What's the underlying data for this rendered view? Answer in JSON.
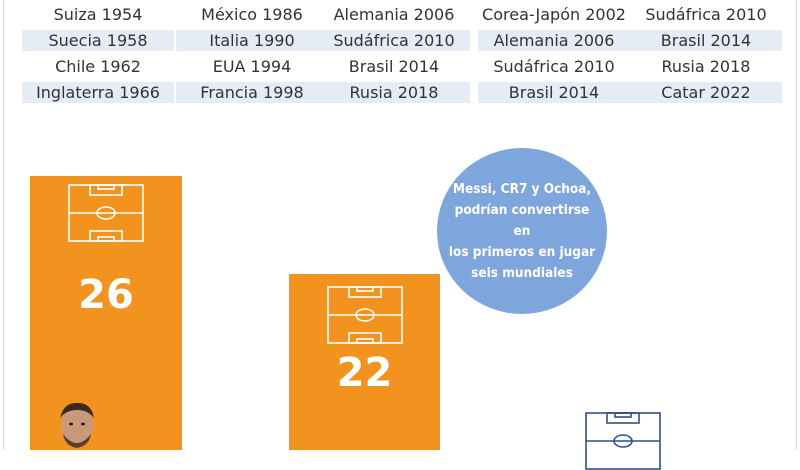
{
  "columns": [
    [
      "Suiza 1954",
      "Suecia 1958",
      "Chile 1962",
      "Inglaterra 1966"
    ],
    [
      "México 1986",
      "Italia 1990",
      "EUA 1994",
      "Francia 1998"
    ],
    [
      "Alemania 2006",
      "Sudáfrica 2010",
      "Brasil 2014",
      "Rusia 2018"
    ],
    [
      "Corea-Japón 2002",
      "Alemania 2006",
      "Sudáfrica 2010",
      "Brasil 2014"
    ],
    [
      "Sudáfrica 2010",
      "Brasil 2014",
      "Rusia 2018",
      "Catar 2022"
    ]
  ],
  "bars": [
    {
      "value": "26"
    },
    {
      "value": "22"
    }
  ],
  "callout": {
    "text_lines": [
      "Messi, CR7 y Ochoa,",
      "podrían convertirse en",
      "los primeros en jugar",
      "seis mundiales"
    ]
  },
  "colors": {
    "bar": "#f2921f",
    "bubble": "#7ea6dc",
    "row_shade": "#e5ecf6",
    "pitch_outline_light": "#ffffff",
    "pitch_outline_dark": "#2f4f8a"
  },
  "icons": [
    "soccer-field-icon",
    "player-avatar"
  ]
}
